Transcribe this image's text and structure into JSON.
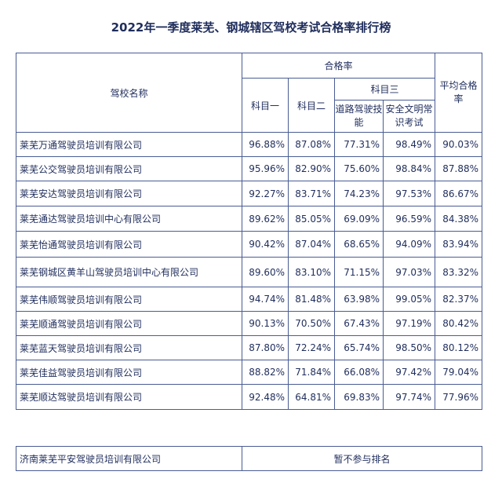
{
  "title": "2022年一季度莱芜、钢城辖区驾校考试合格率排行榜",
  "headers": {
    "school_name": "驾校名称",
    "pass_rate": "合格率",
    "subject1": "科目一",
    "subject2": "科目二",
    "subject3": "科目三",
    "road_driving": "道路驾驶技能",
    "safety_knowledge": "安全文明常识考试",
    "average": "平均合格率"
  },
  "rows": [
    {
      "name": "莱芜万通驾驶员培训有限公司",
      "s1": "96.88%",
      "s2": "87.08%",
      "road": "77.31%",
      "safe": "98.49%",
      "avg": "90.03%"
    },
    {
      "name": "莱芜公交驾驶员培训有限公司",
      "s1": "95.96%",
      "s2": "82.90%",
      "road": "75.60%",
      "safe": "98.84%",
      "avg": "87.88%"
    },
    {
      "name": "莱芜安达驾驶员培训有限公司",
      "s1": "92.27%",
      "s2": "83.71%",
      "road": "74.23%",
      "safe": "97.53%",
      "avg": "86.67%"
    },
    {
      "name": "莱芜通达驾驶员培训中心有限公司",
      "s1": "89.62%",
      "s2": "85.05%",
      "road": "69.09%",
      "safe": "96.59%",
      "avg": "84.38%"
    },
    {
      "name": "莱芜怡通驾驶员培训有限公司",
      "s1": "90.42%",
      "s2": "87.04%",
      "road": "68.65%",
      "safe": "94.09%",
      "avg": "83.94%"
    },
    {
      "name": "莱芜钢城区黄羊山驾驶员培训中心有限公司",
      "s1": "89.60%",
      "s2": "83.10%",
      "road": "71.15%",
      "safe": "97.03%",
      "avg": "83.32%"
    },
    {
      "name": "莱芜伟顺驾驶员培训有限公司",
      "s1": "94.74%",
      "s2": "81.48%",
      "road": "63.98%",
      "safe": "99.05%",
      "avg": "82.37%"
    },
    {
      "name": "莱芜顺通驾驶员培训有限公司",
      "s1": "90.13%",
      "s2": "70.50%",
      "road": "67.43%",
      "safe": "97.19%",
      "avg": "80.42%"
    },
    {
      "name": "莱芜蓝天驾驶员培训有限公司",
      "s1": "87.80%",
      "s2": "72.24%",
      "road": "65.74%",
      "safe": "98.50%",
      "avg": "80.12%"
    },
    {
      "name": "莱芜佳益驾驶员培训有限公司",
      "s1": "88.82%",
      "s2": "71.84%",
      "road": "66.08%",
      "safe": "97.42%",
      "avg": "79.04%"
    },
    {
      "name": "莱芜顺达驾驶员培训有限公司",
      "s1": "92.48%",
      "s2": "64.81%",
      "road": "69.83%",
      "safe": "97.74%",
      "avg": "77.96%"
    }
  ],
  "footer": {
    "name": "济南莱芜平安驾驶员培训有限公司",
    "note": "暂不参与排名"
  }
}
